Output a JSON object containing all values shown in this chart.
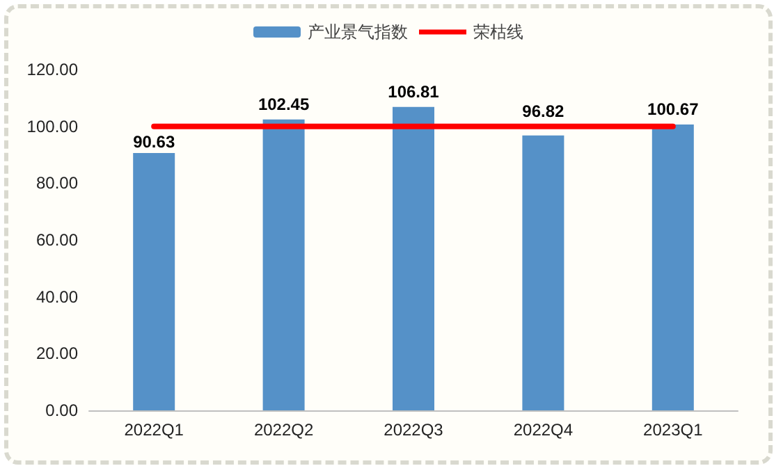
{
  "chart_data": {
    "type": "bar",
    "categories": [
      "2022Q1",
      "2022Q2",
      "2022Q3",
      "2022Q4",
      "2023Q1"
    ],
    "series": [
      {
        "name": "产业景气指数",
        "color": "#5591c8",
        "values": [
          90.63,
          102.45,
          106.81,
          96.82,
          100.67
        ],
        "value_labels": [
          "90.63",
          "102.45",
          "106.81",
          "96.82",
          "100.67"
        ]
      },
      {
        "name": "荣枯线",
        "type": "line",
        "color": "#ff0000",
        "values": [
          100,
          100,
          100,
          100,
          100
        ],
        "marker": "none",
        "line_style": "solid"
      }
    ],
    "ylim": [
      0,
      120
    ],
    "yticks": [
      {
        "value": 0,
        "label": "0.00"
      },
      {
        "value": 20,
        "label": "20.00"
      },
      {
        "value": 40,
        "label": "40.00"
      },
      {
        "value": 60,
        "label": "60.00"
      },
      {
        "value": 80,
        "label": "80.00"
      },
      {
        "value": 100,
        "label": "100.00"
      },
      {
        "value": 120,
        "label": "120.00"
      }
    ],
    "grid": false,
    "legend": "top"
  }
}
